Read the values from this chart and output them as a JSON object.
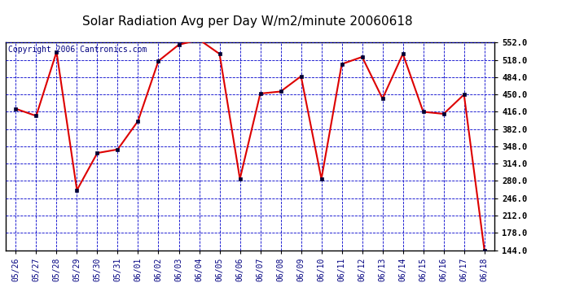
{
  "title": "Solar Radiation Avg per Day W/m2/minute 20060618",
  "copyright": "Copyright 2006 Cantronics.com",
  "dates": [
    "05/26",
    "05/27",
    "05/28",
    "05/29",
    "05/30",
    "05/31",
    "06/01",
    "06/02",
    "06/03",
    "06/04",
    "06/05",
    "06/06",
    "06/07",
    "06/08",
    "06/09",
    "06/10",
    "06/11",
    "06/12",
    "06/13",
    "06/14",
    "06/15",
    "06/16",
    "06/17",
    "06/18"
  ],
  "values": [
    422,
    408,
    534,
    262,
    335,
    342,
    398,
    516,
    548,
    558,
    530,
    284,
    452,
    456,
    486,
    284,
    510,
    524,
    442,
    530,
    416,
    412,
    450,
    144
  ],
  "ymin": 144,
  "ymax": 552,
  "ytick_values": [
    144,
    178,
    212,
    246,
    280,
    314,
    348,
    382,
    416,
    450,
    484,
    518,
    552
  ],
  "line_color": "#dd0000",
  "marker_color": "#000000",
  "plot_bg_color": "#ffffff",
  "fig_bg_color": "#ffffff",
  "grid_color": "#0000cc",
  "title_fontsize": 11,
  "copyright_fontsize": 7,
  "tick_label_color": "#000080",
  "right_tick_color": "#000000"
}
